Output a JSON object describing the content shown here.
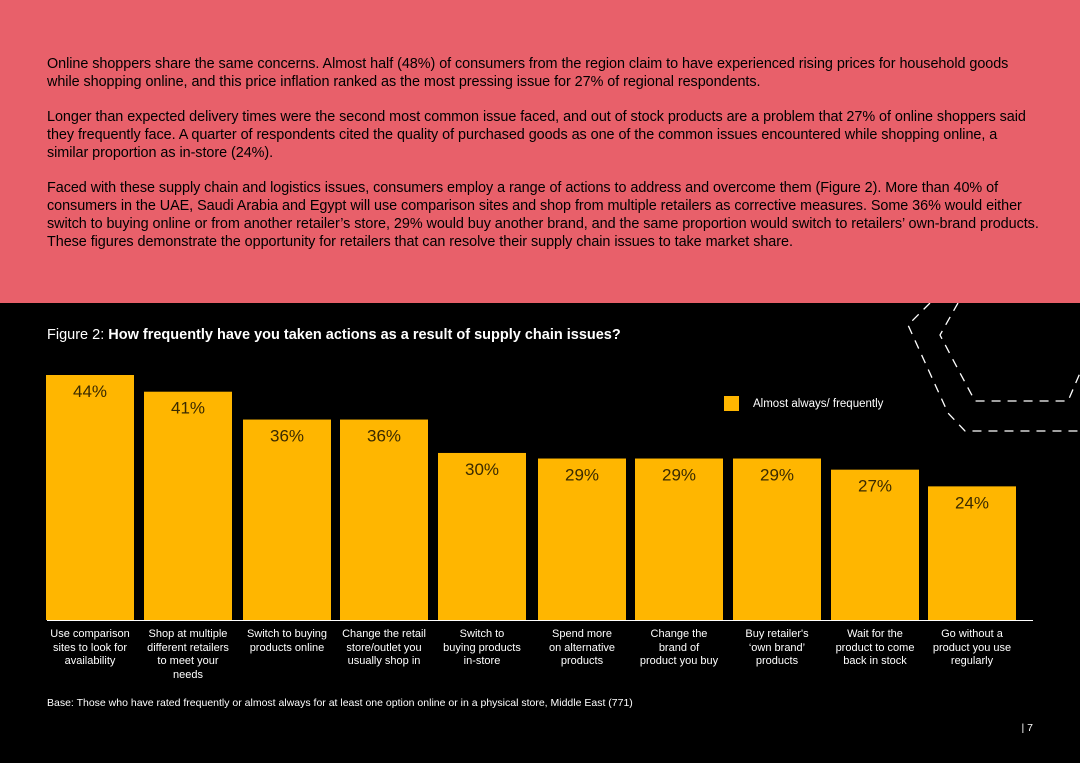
{
  "intro": {
    "paragraphs": [
      "Online shoppers share the same concerns. Almost half (48%) of consumers from the region claim to have experienced rising prices for household goods while shopping online, and this price inflation ranked as the most pressing issue for 27% of regional respondents.",
      "Longer than expected delivery times were the second most common issue faced, and out of stock products are a problem that 27% of online shoppers said they frequently face. A quarter of respondents cited the quality of purchased goods as one of the common issues encountered while shopping online, a similar proportion as in-store (24%).",
      "Faced with these supply chain and logistics issues, consumers employ a range of actions to address and overcome them (Figure 2). More than 40% of consumers in the UAE, Saudi Arabia and Egypt will use comparison sites and shop from multiple retailers as corrective measures. Some 36% would either switch to buying online or from another retailer’s store, 29% would buy another brand, and the same proportion would switch to retailers’ own-brand products. These figures demonstrate the opportunity for retailers that can resolve their supply chain issues to take market share."
    ]
  },
  "figure": {
    "prefix": "Figure 2: ",
    "title": "How frequently have you taken actions as a result of supply chain issues?"
  },
  "chart_data": {
    "type": "bar",
    "title": "How frequently have you taken actions as a result of supply chain issues?",
    "categories": [
      "Use comparison sites to look for availability",
      "Shop at multiple different retailers to meet your needs",
      "Switch to buying products online",
      "Change the retail store/outlet you usually shop in",
      "Switch to buying products in-store",
      "Spend more on alternative products",
      "Change the brand of product you buy",
      "Buy retailer's ‘own brand’ products",
      "Wait for the product to come back in stock",
      "Go without a product you use regularly"
    ],
    "category_lines": [
      [
        "Use comparison",
        "sites to look for",
        "availability"
      ],
      [
        "Shop at multiple",
        "different retailers",
        "to meet your",
        "needs"
      ],
      [
        "Switch to buying",
        "products online"
      ],
      [
        "Change the retail",
        "store/outlet you",
        "usually shop in"
      ],
      [
        "Switch to",
        "buying products",
        "in-store"
      ],
      [
        "Spend more",
        "on alternative",
        "products"
      ],
      [
        "Change the",
        "brand of",
        "product you buy"
      ],
      [
        "Buy retailer's",
        "‘own brand’",
        "products"
      ],
      [
        "Wait for the",
        "product to come",
        "back in stock"
      ],
      [
        "Go without a",
        "product you use",
        "regularly"
      ]
    ],
    "series": [
      {
        "name": "Almost always/ frequently",
        "values": [
          44,
          41,
          36,
          36,
          30,
          29,
          29,
          29,
          27,
          24
        ],
        "labels": [
          "44%",
          "41%",
          "36%",
          "36%",
          "30%",
          "29%",
          "29%",
          "29%",
          "27%",
          "24%"
        ]
      }
    ],
    "ylim": [
      0,
      44
    ],
    "legend": "top-right",
    "grid": false,
    "bar_color": "#ffb600"
  },
  "base_note": "Base: Those who have rated frequently or almost always for at least one option online or in a physical store, Middle East (771)",
  "page_number": "| 7",
  "colors": {
    "accent_panel": "#e8606a",
    "bar": "#ffb600",
    "background": "#000000"
  }
}
